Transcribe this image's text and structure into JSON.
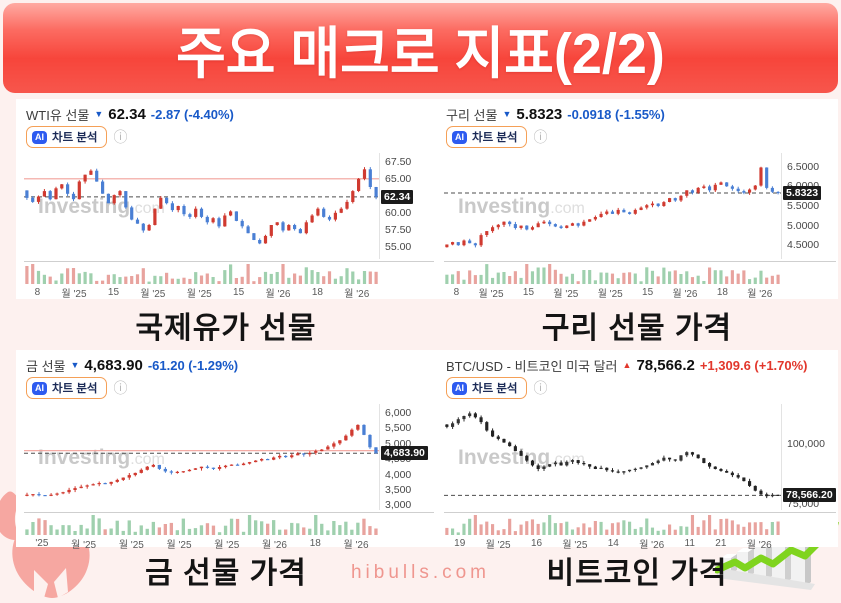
{
  "title": "주요 매크로 지표(2/2)",
  "footer": {
    "site": "hibulls.com"
  },
  "watermark": {
    "bold": "Investing",
    "light": ".com"
  },
  "ai_badge": {
    "icon": "AI",
    "label": "차트 분석"
  },
  "icons": {
    "info": "ⓘ"
  },
  "colors": {
    "banner_red": "#f7453b",
    "background": "#fdf1ef",
    "change_down": "#1859c8",
    "change_up": "#e2372c",
    "badge_bg": "#1b1b1b",
    "ai_border": "#f5a057",
    "ai_chip": "#2d5bf0",
    "site_pink": "#ef968f"
  },
  "chart_data": [
    {
      "type": "candlestick",
      "name": "WTI유 선물",
      "arrow": "▼",
      "trend": "down",
      "price_label": "62.34",
      "change_label": "-2.87 (-4.40%)",
      "caption": "국제유가 선물",
      "current": 62.34,
      "current_badge": "62.34",
      "ylim": [
        53.2,
        68.8
      ],
      "yticks": [
        {
          "v": 67.5,
          "label": "67.50"
        },
        {
          "v": 65.0,
          "label": "65.00"
        },
        {
          "v": 60.0,
          "label": "60.00"
        },
        {
          "v": 57.5,
          "label": "57.50"
        },
        {
          "v": 55.0,
          "label": "55.00"
        }
      ],
      "hline": 65.0,
      "xticks": [
        "8",
        "월 '25",
        "15",
        "월 '25",
        "월 '25",
        "15",
        "월 '26",
        "18",
        "월 '26"
      ],
      "close": [
        63.3,
        62.2,
        61.6,
        62.4,
        63.2,
        62.0,
        63.6,
        64.2,
        62.8,
        62.0,
        64.6,
        65.6,
        66.2,
        64.6,
        62.8,
        61.4,
        62.6,
        63.2,
        60.8,
        59.0,
        58.4,
        57.4,
        58.2,
        60.6,
        62.2,
        61.4,
        60.4,
        61.0,
        59.8,
        59.4,
        60.6,
        59.4,
        58.6,
        59.2,
        58.0,
        59.6,
        60.2,
        58.8,
        58.0,
        57.0,
        56.0,
        55.5,
        56.6,
        58.2,
        58.6,
        57.4,
        58.2,
        57.6,
        57.0,
        58.6,
        59.6,
        60.6,
        59.4,
        59.0,
        60.0,
        60.6,
        61.6,
        63.2,
        65.0,
        66.4,
        63.8,
        62.34
      ],
      "up_color": "#d03a30",
      "down_color": "#4a7fd4",
      "vol_up": "#9fd0ae",
      "vol_down": "#e8a39e"
    },
    {
      "type": "candlestick",
      "name": "구리 선물",
      "arrow": "▼",
      "trend": "down",
      "price_label": "5.8323",
      "change_label": "-0.0918 (-1.55%)",
      "caption": "구리 선물 가격",
      "current": 5.8323,
      "current_badge": "5.8323",
      "ylim": [
        4.15,
        6.85
      ],
      "yticks": [
        {
          "v": 6.5,
          "label": "6.5000"
        },
        {
          "v": 6.0,
          "label": "6.0000"
        },
        {
          "v": 5.5,
          "label": "5.5000"
        },
        {
          "v": 5.0,
          "label": "5.0000"
        },
        {
          "v": 4.5,
          "label": "4.5000"
        }
      ],
      "hline": null,
      "xticks": [
        "8",
        "월 '25",
        "15",
        "월 '25",
        "월 '25",
        "15",
        "월 '26",
        "18",
        "월 '26"
      ],
      "close": [
        4.45,
        4.52,
        4.58,
        4.5,
        4.62,
        4.55,
        4.5,
        4.76,
        4.86,
        4.96,
        5.02,
        5.1,
        5.04,
        4.94,
        5.0,
        4.9,
        4.96,
        5.06,
        5.1,
        5.04,
        4.98,
        4.94,
        5.0,
        5.06,
        5.0,
        5.1,
        5.16,
        5.22,
        5.3,
        5.36,
        5.3,
        5.4,
        5.34,
        5.3,
        5.4,
        5.46,
        5.52,
        5.56,
        5.5,
        5.6,
        5.7,
        5.64,
        5.76,
        5.9,
        5.84,
        5.96,
        6.0,
        5.9,
        6.04,
        6.1,
        6.0,
        5.94,
        5.88,
        5.84,
        5.92,
        6.02,
        6.48,
        5.96,
        5.86,
        5.8323
      ],
      "up_color": "#d03a30",
      "down_color": "#4a7fd4",
      "vol_up": "#9fd0ae",
      "vol_down": "#e8a39e"
    },
    {
      "type": "candlestick",
      "name": "금 선물",
      "arrow": "▼",
      "trend": "down",
      "price_label": "4,683.90",
      "change_label": "-61.20 (-1.29%)",
      "caption": "금 선물 가격",
      "current": 4683.9,
      "current_badge": "4,683.90",
      "ylim": [
        2850,
        6280
      ],
      "yticks": [
        {
          "v": 6000,
          "label": "6,000"
        },
        {
          "v": 5500,
          "label": "5,500"
        },
        {
          "v": 5000,
          "label": "5,000"
        },
        {
          "v": 4500,
          "label": "4,500"
        },
        {
          "v": 4000,
          "label": "4,000"
        },
        {
          "v": 3500,
          "label": "3,500"
        },
        {
          "v": 3000,
          "label": "3,000"
        }
      ],
      "hline": 4770,
      "xticks": [
        "'25",
        "월 '25",
        "월 '25",
        "월 '25",
        "월 '25",
        "월 '26",
        "18",
        "월 '26"
      ],
      "close": [
        3320,
        3345,
        3365,
        3335,
        3310,
        3345,
        3385,
        3425,
        3500,
        3560,
        3605,
        3645,
        3685,
        3725,
        3700,
        3760,
        3825,
        3900,
        3980,
        4050,
        4150,
        4250,
        4310,
        4180,
        4100,
        4060,
        4085,
        4105,
        4150,
        4200,
        4250,
        4220,
        4180,
        4240,
        4285,
        4320,
        4300,
        4350,
        4400,
        4450,
        4500,
        4480,
        4550,
        4600,
        4560,
        4620,
        4680,
        4650,
        4700,
        4755,
        4805,
        4900,
        5005,
        5105,
        5255,
        5450,
        5605,
        5280,
        4880,
        4683.9
      ],
      "up_color": "#d03a30",
      "down_color": "#4a7fd4",
      "vol_up": "#9fd0ae",
      "vol_down": "#e8a39e"
    },
    {
      "type": "candlestick",
      "name": "BTC/USD - 비트코인 미국 달러",
      "arrow": "▲",
      "trend": "up",
      "price_label": "78,566.2",
      "change_label": "+1,309.6 (+1.70%)",
      "caption": "비트코인 가격",
      "current": 78566.2,
      "current_badge": "78,566.20",
      "ylim": [
        72500,
        116500
      ],
      "yticks": [
        {
          "v": 100000,
          "label": "100,000"
        },
        {
          "v": 75000,
          "label": "75,000"
        }
      ],
      "hline": null,
      "xticks": [
        "19",
        "월 '25",
        "16",
        "월 '25",
        "14",
        "월 '26",
        "11",
        "21",
        "월 '26"
      ],
      "close": [
        108000,
        107000,
        108500,
        110200,
        111500,
        112600,
        111000,
        109000,
        105500,
        103000,
        102000,
        100500,
        99000,
        97000,
        95000,
        93000,
        91000,
        89500,
        90500,
        91500,
        92200,
        91000,
        92500,
        93200,
        92000,
        91500,
        90500,
        89500,
        90000,
        89000,
        88500,
        88000,
        88600,
        89200,
        89600,
        90200,
        91000,
        92000,
        93000,
        94200,
        93500,
        93000,
        95200,
        96500,
        95500,
        94000,
        92000,
        90500,
        89500,
        88700,
        88000,
        87000,
        86000,
        84500,
        82500,
        80500,
        79000,
        78200,
        78800,
        78566.2
      ],
      "up_color": "#343434",
      "down_color": "#232323",
      "vol_up": "#9fd0ae",
      "vol_down": "#e8a39e"
    }
  ]
}
